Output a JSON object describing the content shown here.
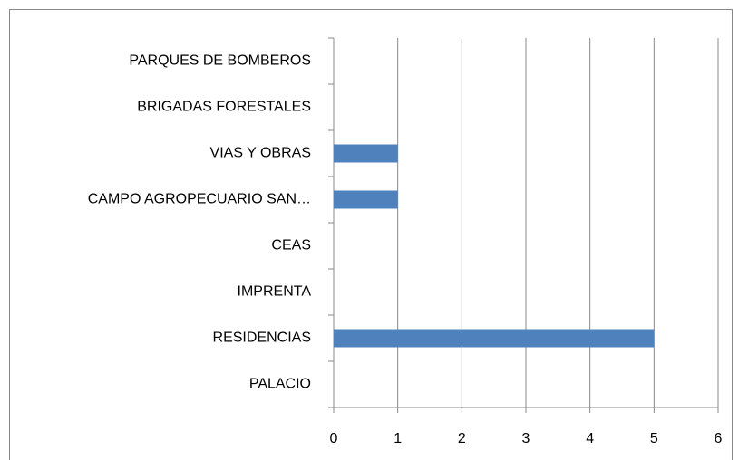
{
  "chart_data": {
    "type": "bar",
    "orientation": "horizontal",
    "categories": [
      "PARQUES DE BOMBEROS",
      "BRIGADAS FORESTALES",
      "VIAS Y OBRAS",
      "CAMPO AGROPECUARIO SAN…",
      "CEAS",
      "IMPRENTA",
      "RESIDENCIAS",
      "PALACIO"
    ],
    "values": [
      0,
      0,
      1,
      1,
      0,
      0,
      5,
      0
    ],
    "color": "#4f81bd",
    "xlim": [
      0,
      6
    ],
    "xticks": [
      0,
      1,
      2,
      3,
      4,
      5,
      6
    ],
    "grid": true
  }
}
